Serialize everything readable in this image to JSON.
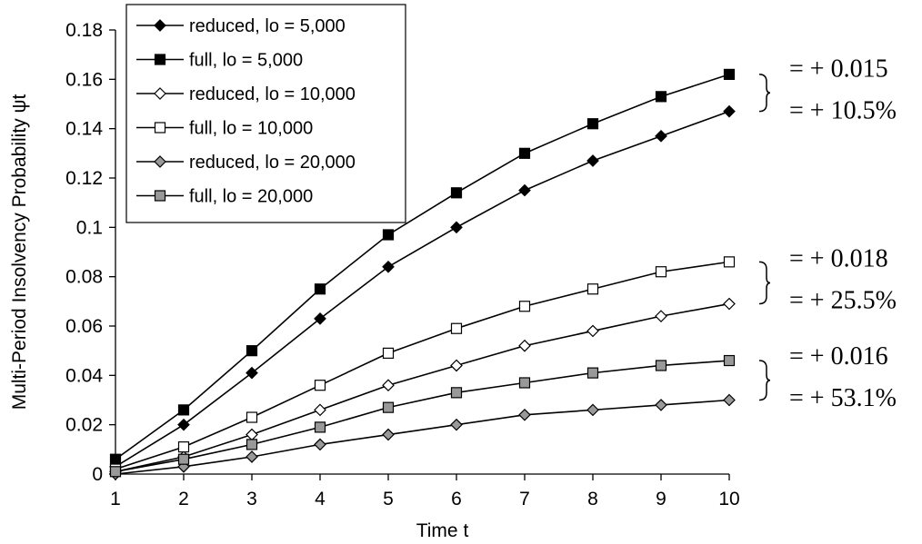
{
  "chart_data": {
    "type": "line",
    "xlabel": "Time t",
    "ylabel": "Multi-Period Insolvency Probability ψt",
    "x": [
      1,
      2,
      3,
      4,
      5,
      6,
      7,
      8,
      9,
      10
    ],
    "xlim": [
      1,
      10
    ],
    "ylim": [
      0,
      0.18
    ],
    "x_ticks": [
      "1",
      "2",
      "3",
      "4",
      "5",
      "6",
      "7",
      "8",
      "9",
      "10"
    ],
    "y_ticks": [
      "0",
      "0.02",
      "0.04",
      "0.06",
      "0.08",
      "0.1",
      "0.12",
      "0.14",
      "0.16",
      "0.18"
    ],
    "grid": false,
    "legend_position": "top-left",
    "series": [
      {
        "name": "reduced, lo = 5,000",
        "marker": "diamond",
        "fill": "#000000",
        "values": [
          0.003,
          0.02,
          0.041,
          0.063,
          0.084,
          0.1,
          0.115,
          0.127,
          0.137,
          0.147
        ]
      },
      {
        "name": "full, lo = 5,000",
        "marker": "square",
        "fill": "#000000",
        "values": [
          0.006,
          0.026,
          0.05,
          0.075,
          0.097,
          0.114,
          0.13,
          0.142,
          0.153,
          0.162
        ]
      },
      {
        "name": "reduced, lo = 10,000",
        "marker": "diamond",
        "fill": "#ffffff",
        "values": [
          0.001,
          0.007,
          0.016,
          0.026,
          0.036,
          0.044,
          0.052,
          0.058,
          0.064,
          0.069
        ]
      },
      {
        "name": "full, lo = 10,000",
        "marker": "square",
        "fill": "#ffffff",
        "values": [
          0.002,
          0.011,
          0.023,
          0.036,
          0.049,
          0.059,
          0.068,
          0.075,
          0.082,
          0.086
        ]
      },
      {
        "name": "reduced, lo = 20,000",
        "marker": "diamond",
        "fill": "#999999",
        "values": [
          0.0,
          0.003,
          0.007,
          0.012,
          0.016,
          0.02,
          0.024,
          0.026,
          0.028,
          0.03
        ]
      },
      {
        "name": "full, lo = 20,000",
        "marker": "square",
        "fill": "#999999",
        "values": [
          0.001,
          0.006,
          0.012,
          0.019,
          0.027,
          0.033,
          0.037,
          0.041,
          0.044,
          0.046
        ]
      }
    ],
    "annotations": [
      {
        "lines": [
          "= + 0.015",
          "= + 10.5%"
        ],
        "y_range": [
          0.147,
          0.162
        ]
      },
      {
        "lines": [
          "= + 0.018",
          "= + 25.5%"
        ],
        "y_range": [
          0.069,
          0.086
        ]
      },
      {
        "lines": [
          "= + 0.016",
          "= + 53.1%"
        ],
        "y_range": [
          0.03,
          0.046
        ]
      }
    ]
  }
}
